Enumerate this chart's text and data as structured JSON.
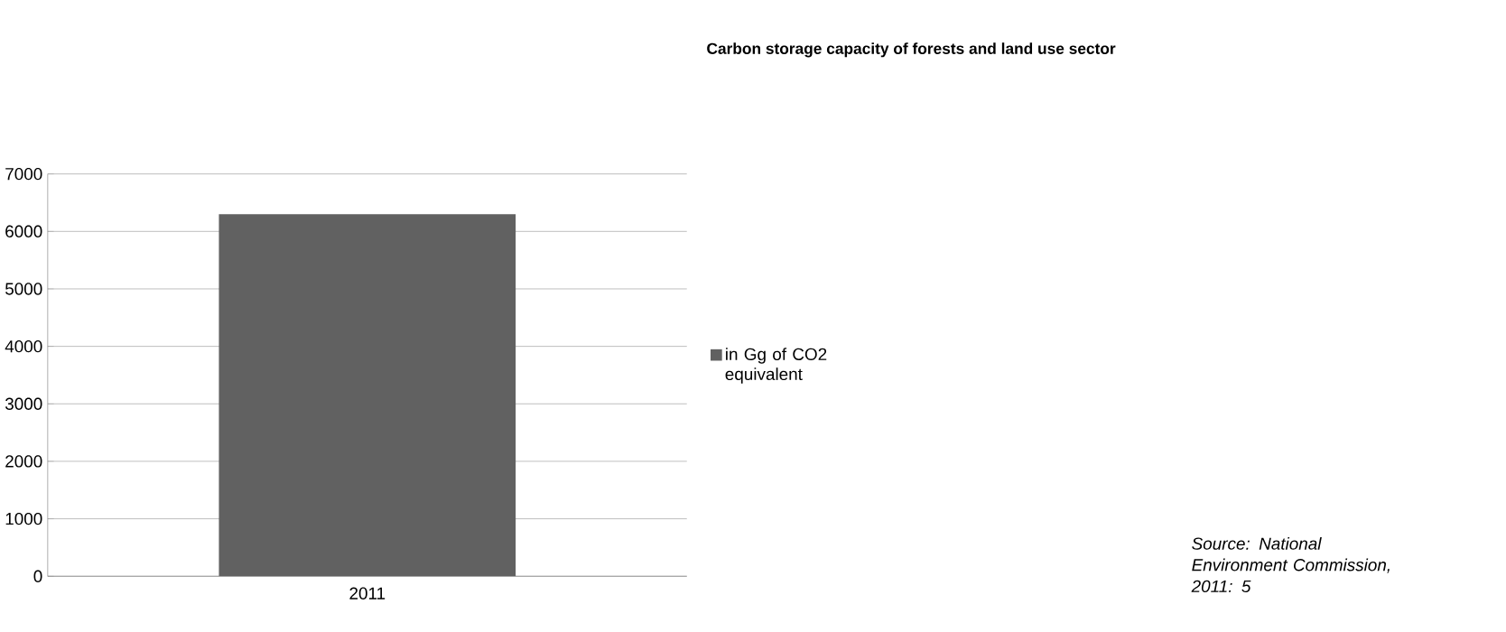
{
  "chart_data": {
    "type": "bar",
    "title": "Carbon storage capacity of forests and land use sector",
    "categories": [
      "2011"
    ],
    "series": [
      {
        "name": "in Gg of CO2 equivalent",
        "color": "#616161",
        "values": [
          6300
        ]
      }
    ],
    "ylim": [
      0,
      7000
    ],
    "yticks": [
      0,
      1000,
      2000,
      3000,
      4000,
      5000,
      6000,
      7000
    ],
    "grid": "y",
    "legend": "right",
    "annotations": [
      "*Source: National Environment Commission, 2011: 5*"
    ]
  }
}
